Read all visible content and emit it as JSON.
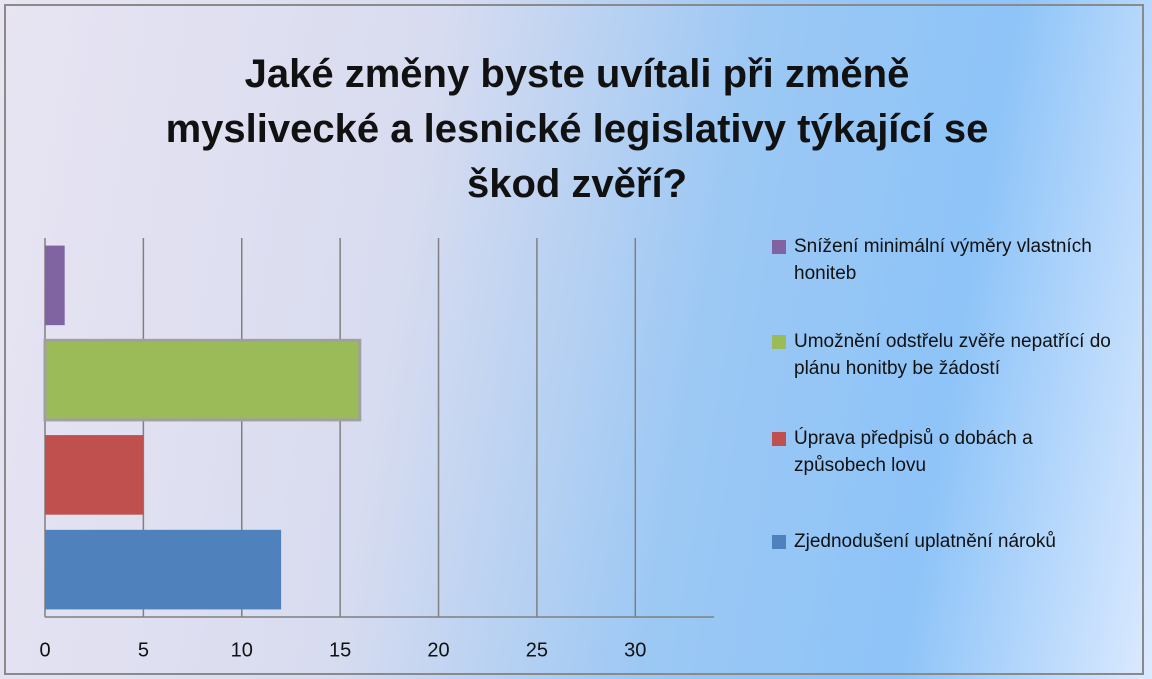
{
  "chart_data": {
    "type": "barh",
    "title_lines": [
      "Jaké změny byste uvítali při změně",
      "myslivecké a lesnické legislativy týkající se",
      "škod zvěří?"
    ],
    "series": [
      {
        "name": "Snížení minimální výměry vlastních honiteb",
        "color": "#8064a2",
        "values": [
          1
        ]
      },
      {
        "name": "Umožnění odstřelu zvěře nepatřící do plánu honitby be žádostí",
        "color": "#9bbb59",
        "values": [
          16
        ]
      },
      {
        "name": "Úprava předpisů o dobách a způsobech lovu",
        "color": "#c0504d",
        "values": [
          5
        ]
      },
      {
        "name": "Zjednodušení uplatnění nároků",
        "color": "#4f81bd",
        "values": [
          12
        ]
      }
    ],
    "xlim": [
      0,
      34
    ],
    "xticks": [
      0,
      5,
      10,
      15,
      20,
      25,
      30
    ],
    "grid": true,
    "legend": "right"
  }
}
